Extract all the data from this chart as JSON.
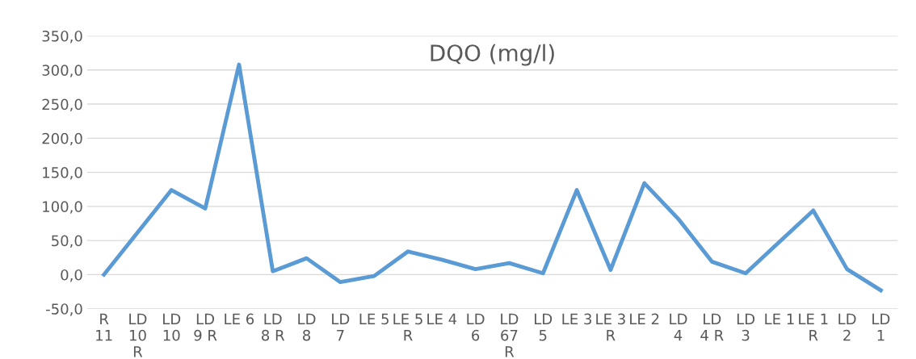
{
  "chart_data": {
    "type": "line",
    "title": "DQO (mg/l)",
    "categories": [
      "R\n11",
      "LD\n10\nR",
      "LD\n10",
      "LD\n9 R",
      "LE 6",
      "LD\n8 R",
      "LD\n8",
      "LD\n7",
      "LE 5",
      "LE 5\nR",
      "LE 4",
      "LD\n6",
      "LD\n67\nR",
      "LD\n5",
      "LE 3",
      "LE 3\nR",
      "LE 2",
      "LD\n4",
      "LD\n4 R",
      "LD\n3",
      "LE 1",
      "LE 1\nR",
      "LD\n2",
      "LD\n1"
    ],
    "series": [
      {
        "color": "#5b9bd5",
        "values": [
          0,
          62,
          124,
          97,
          308,
          5,
          24,
          -11,
          -2,
          34,
          22,
          8,
          17,
          2,
          124,
          7,
          134,
          82,
          19,
          2,
          48,
          94,
          8,
          -23
        ]
      }
    ],
    "ylim": [
      -50,
      350
    ],
    "yticks": [
      {
        "value": -50,
        "label": "-50,0"
      },
      {
        "value": 0,
        "label": "0,0"
      },
      {
        "value": 50,
        "label": "50,0"
      },
      {
        "value": 100,
        "label": "100,0"
      },
      {
        "value": 150,
        "label": "150,0"
      },
      {
        "value": 200,
        "label": "200,0"
      },
      {
        "value": 250,
        "label": "250,0"
      },
      {
        "value": 300,
        "label": "300,0"
      },
      {
        "value": 350,
        "label": "350,0"
      }
    ],
    "grid": "y",
    "marker": "none",
    "line_style": "solid"
  }
}
